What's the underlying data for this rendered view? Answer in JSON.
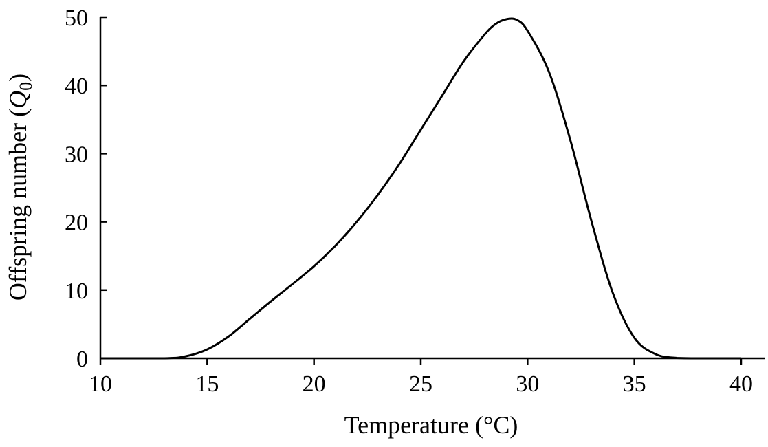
{
  "chart_data": {
    "type": "line",
    "xlabel": "Temperature (°C)",
    "ylabel": "Offspring number (",
    "ylabel_symbol": "Q",
    "ylabel_subscript": "0",
    "ylabel_close": ")",
    "xlim": [
      10,
      41
    ],
    "ylim": [
      0,
      50
    ],
    "xticks": [
      10,
      15,
      20,
      25,
      30,
      35,
      40
    ],
    "yticks": [
      0,
      10,
      20,
      30,
      40,
      50
    ],
    "grid": false,
    "series": [
      {
        "x": [
          10,
          13,
          14,
          15,
          16,
          17,
          18,
          19,
          20,
          21,
          22,
          23,
          24,
          25,
          26,
          27,
          28,
          28.5,
          29,
          29.5,
          30,
          31,
          32,
          33,
          34,
          35,
          36,
          37,
          38,
          39,
          40
        ],
        "values": [
          0,
          0,
          0.3,
          1.3,
          3.2,
          5.8,
          8.4,
          10.9,
          13.5,
          16.5,
          20.0,
          24.0,
          28.5,
          33.5,
          38.5,
          43.5,
          47.5,
          49.0,
          49.7,
          49.6,
          48.0,
          42.0,
          32.0,
          20.0,
          9.5,
          3.0,
          0.6,
          0.05,
          0,
          0,
          0
        ]
      }
    ]
  }
}
